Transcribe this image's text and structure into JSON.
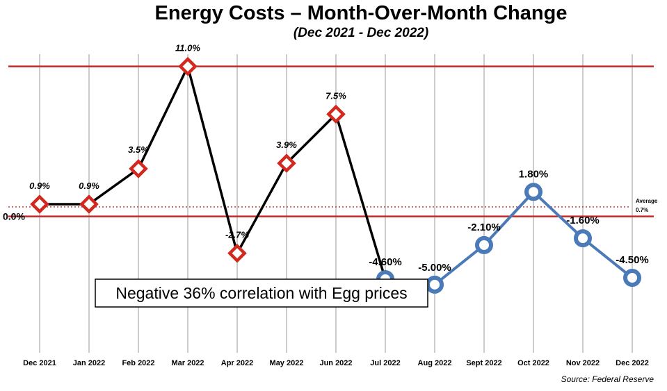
{
  "chart_data": {
    "type": "line",
    "title": "Energy Costs – Month-Over-Month Change",
    "subtitle": "(Dec 2021 - Dec 2022)",
    "categories": [
      "Dec 2021",
      "Jan 2022",
      "Feb 2022",
      "Mar 2022",
      "Apr 2022",
      "May 2022",
      "Jun 2022",
      "Jul 2022",
      "Aug 2022",
      "Sept 2022",
      "Oct 2022",
      "Nov 2022",
      "Dec 2022"
    ],
    "series": [
      {
        "values": [
          0.9,
          0.9,
          3.5,
          11.0,
          -2.7,
          3.9,
          7.5,
          -4.6,
          null,
          null,
          null,
          null,
          null
        ],
        "labels": [
          "0.9%",
          "0.9%",
          "3.5%",
          "11.0%",
          "-2.7%",
          "3.9%",
          "7.5%",
          null,
          null,
          null,
          null,
          null,
          null
        ],
        "line_color": "#000000",
        "marker": "diamond",
        "marker_color": "#d2281e"
      },
      {
        "values": [
          null,
          null,
          null,
          null,
          null,
          null,
          null,
          -4.6,
          -5.0,
          -2.1,
          1.8,
          -1.6,
          -4.5
        ],
        "labels": [
          null,
          null,
          null,
          null,
          null,
          null,
          null,
          "-4.60%",
          "-5.00%",
          "-2.10%",
          "1.80%",
          "-1.60%",
          "-4.50%"
        ],
        "line_color": "#4a7ab8",
        "marker": "ring",
        "marker_color": "#4a7ab8"
      }
    ],
    "reference_lines": [
      {
        "value": 11.0,
        "style": "solid",
        "color": "#c62828"
      },
      {
        "value": 0.0,
        "style": "solid",
        "color": "#c62828",
        "label": "0.0%"
      },
      {
        "value": 0.7,
        "style": "dotted",
        "color": "#c62828",
        "label_top": "Average",
        "label_bottom": "0.7%"
      }
    ],
    "ylim": [
      -10,
      11.9
    ],
    "grid": "vertical",
    "annotation": "Negative 36% correlation with Egg prices",
    "source": "Source: Federal Reserve"
  }
}
